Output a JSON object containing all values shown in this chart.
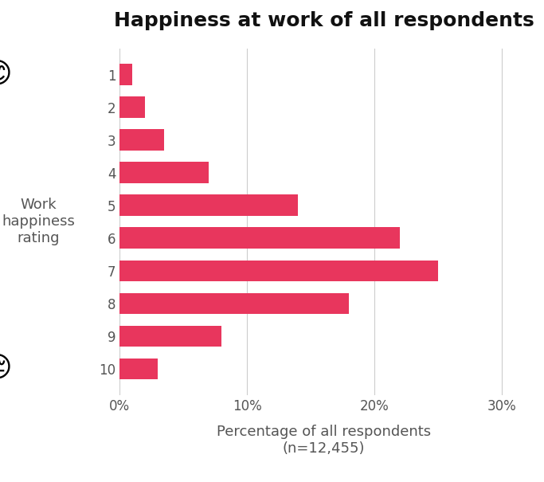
{
  "title": "Happiness at work of all respondents",
  "categories": [
    10,
    9,
    8,
    7,
    6,
    5,
    4,
    3,
    2,
    1
  ],
  "values": [
    3.0,
    8.0,
    18.0,
    25.0,
    22.0,
    14.0,
    7.0,
    3.5,
    2.0,
    1.0
  ],
  "bar_color": "#E8365D",
  "background_color": "#FFFFFF",
  "xlabel_line1": "Percentage of all respondents",
  "xlabel_line2": "(n=12,455)",
  "ylabel_lines": [
    "Work",
    "happiness",
    "rating"
  ],
  "xlim": [
    0,
    32
  ],
  "xtick_values": [
    0,
    10,
    20,
    30
  ],
  "xtick_labels": [
    "0%",
    "10%",
    "20%",
    "30%"
  ],
  "title_fontsize": 18,
  "axis_label_fontsize": 13,
  "tick_fontsize": 12,
  "ylabel_fontsize": 13,
  "gridline_color": "#CCCCCC",
  "text_color": "#555555"
}
